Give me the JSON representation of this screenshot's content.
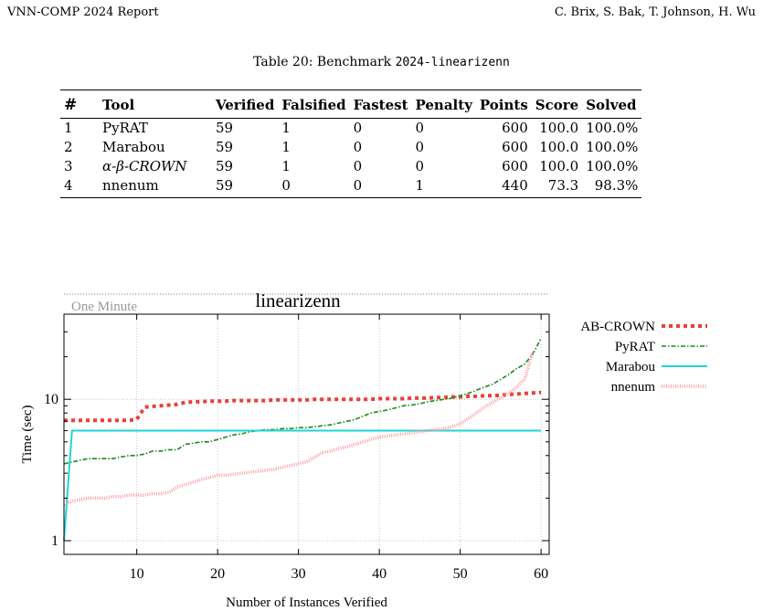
{
  "header": {
    "left": "VNN-COMP 2024 Report",
    "right": "C. Brix, S. Bak, T. Johnson, H. Wu"
  },
  "caption": {
    "prefix": "Table 20: Benchmark ",
    "name": "2024-linearizenn"
  },
  "table": {
    "columns": [
      "#",
      "Tool",
      "Verified",
      "Falsified",
      "Fastest",
      "Penalty",
      "Points",
      "Score",
      "Solved"
    ],
    "rows": [
      [
        "1",
        "PyRAT",
        "59",
        "1",
        "0",
        "0",
        "600",
        "100.0",
        "100.0%"
      ],
      [
        "2",
        "Marabou",
        "59",
        "1",
        "0",
        "0",
        "600",
        "100.0",
        "100.0%"
      ],
      [
        "3",
        "α-β-CROWN",
        "59",
        "1",
        "0",
        "0",
        "600",
        "100.0",
        "100.0%"
      ],
      [
        "4",
        "nnenum",
        "59",
        "0",
        "0",
        "1",
        "440",
        "73.3",
        "98.3%"
      ]
    ]
  },
  "chart_data": {
    "type": "line",
    "title": "linearizenn",
    "xlabel": "Number of Instances Verified",
    "ylabel": "Time (sec)",
    "xlim": [
      1,
      61
    ],
    "ylim": [
      0.8,
      40
    ],
    "yscale": "log",
    "xticks": [
      10,
      20,
      30,
      40,
      50,
      60
    ],
    "yticks": [
      1,
      10
    ],
    "grid": true,
    "legend": "right-top",
    "annotation": {
      "label": "One Minute",
      "y": 60
    },
    "series": [
      {
        "name": "AB-CROWN",
        "color": "#e8403a",
        "style": "dotted-thick",
        "x": [
          1,
          2,
          3,
          4,
          5,
          6,
          7,
          8,
          9,
          10,
          11,
          12,
          13,
          14,
          15,
          16,
          17,
          18,
          19,
          20,
          21,
          22,
          23,
          24,
          25,
          26,
          27,
          28,
          29,
          30,
          31,
          32,
          33,
          34,
          35,
          36,
          37,
          38,
          39,
          40,
          41,
          42,
          43,
          44,
          45,
          46,
          47,
          48,
          49,
          50,
          51,
          52,
          53,
          54,
          55,
          56,
          57,
          58,
          59,
          60
        ],
        "y": [
          7.1,
          7.1,
          7.1,
          7.1,
          7.1,
          7.1,
          7.1,
          7.1,
          7.1,
          7.2,
          8.8,
          8.9,
          9.0,
          9.1,
          9.2,
          9.5,
          9.6,
          9.6,
          9.7,
          9.7,
          9.7,
          9.8,
          9.8,
          9.8,
          9.8,
          9.8,
          9.9,
          9.9,
          9.9,
          9.9,
          9.9,
          10.0,
          10.0,
          10.0,
          10.0,
          10.0,
          10.0,
          10.0,
          10.0,
          10.1,
          10.1,
          10.1,
          10.1,
          10.2,
          10.2,
          10.2,
          10.3,
          10.3,
          10.4,
          10.4,
          10.5,
          10.5,
          10.6,
          10.6,
          10.7,
          10.8,
          10.9,
          11.0,
          11.1,
          11.2
        ]
      },
      {
        "name": "PyRAT",
        "color": "#1a8a1a",
        "style": "dash-dot",
        "x": [
          1,
          2,
          3,
          4,
          5,
          6,
          7,
          8,
          9,
          10,
          11,
          12,
          13,
          14,
          15,
          16,
          17,
          18,
          19,
          20,
          21,
          22,
          23,
          24,
          25,
          26,
          27,
          28,
          29,
          30,
          31,
          32,
          33,
          34,
          35,
          36,
          37,
          38,
          39,
          40,
          41,
          42,
          43,
          44,
          45,
          46,
          47,
          48,
          49,
          50,
          51,
          52,
          53,
          54,
          55,
          56,
          57,
          58,
          59,
          60
        ],
        "y": [
          3.5,
          3.6,
          3.7,
          3.8,
          3.8,
          3.8,
          3.8,
          3.9,
          4.0,
          4.0,
          4.1,
          4.3,
          4.3,
          4.4,
          4.4,
          4.8,
          4.9,
          5.0,
          5.0,
          5.2,
          5.4,
          5.6,
          5.7,
          5.9,
          6.0,
          6.1,
          6.1,
          6.2,
          6.2,
          6.3,
          6.3,
          6.4,
          6.5,
          6.6,
          6.8,
          7.0,
          7.2,
          7.6,
          8.0,
          8.2,
          8.4,
          8.7,
          9.0,
          9.1,
          9.3,
          9.6,
          9.8,
          10.0,
          10.2,
          10.6,
          11.0,
          11.6,
          12.2,
          12.8,
          13.8,
          15.0,
          16.5,
          17.8,
          21.0,
          27.0
        ]
      },
      {
        "name": "Marabou",
        "color": "#21d4d4",
        "style": "solid",
        "x": [
          1,
          2,
          10,
          20,
          30,
          40,
          50,
          60
        ],
        "y": [
          1.0,
          6.0,
          6.0,
          6.0,
          6.0,
          6.0,
          6.0,
          6.0
        ]
      },
      {
        "name": "nnenum",
        "color": "#ff9aa2",
        "style": "dotted-thin",
        "x": [
          1,
          2,
          3,
          4,
          5,
          6,
          7,
          8,
          9,
          10,
          11,
          12,
          13,
          14,
          15,
          16,
          17,
          18,
          19,
          20,
          21,
          22,
          23,
          24,
          25,
          26,
          27,
          28,
          29,
          30,
          31,
          32,
          33,
          34,
          35,
          36,
          37,
          38,
          39,
          40,
          41,
          42,
          43,
          44,
          45,
          46,
          47,
          48,
          49,
          50,
          51,
          52,
          53,
          54,
          55,
          56,
          57,
          58,
          59
        ],
        "y": [
          1.8,
          1.9,
          1.95,
          2.0,
          2.0,
          2.0,
          2.05,
          2.05,
          2.1,
          2.1,
          2.1,
          2.15,
          2.15,
          2.2,
          2.4,
          2.5,
          2.6,
          2.7,
          2.8,
          2.9,
          2.9,
          2.95,
          3.0,
          3.05,
          3.1,
          3.15,
          3.2,
          3.3,
          3.4,
          3.5,
          3.6,
          3.9,
          4.2,
          4.3,
          4.5,
          4.6,
          4.8,
          5.0,
          5.2,
          5.4,
          5.5,
          5.6,
          5.7,
          5.8,
          5.9,
          6.0,
          6.1,
          6.2,
          6.4,
          6.7,
          7.3,
          8.0,
          8.8,
          9.5,
          10.2,
          11.0,
          12.2,
          14.0,
          22.0
        ]
      }
    ]
  }
}
